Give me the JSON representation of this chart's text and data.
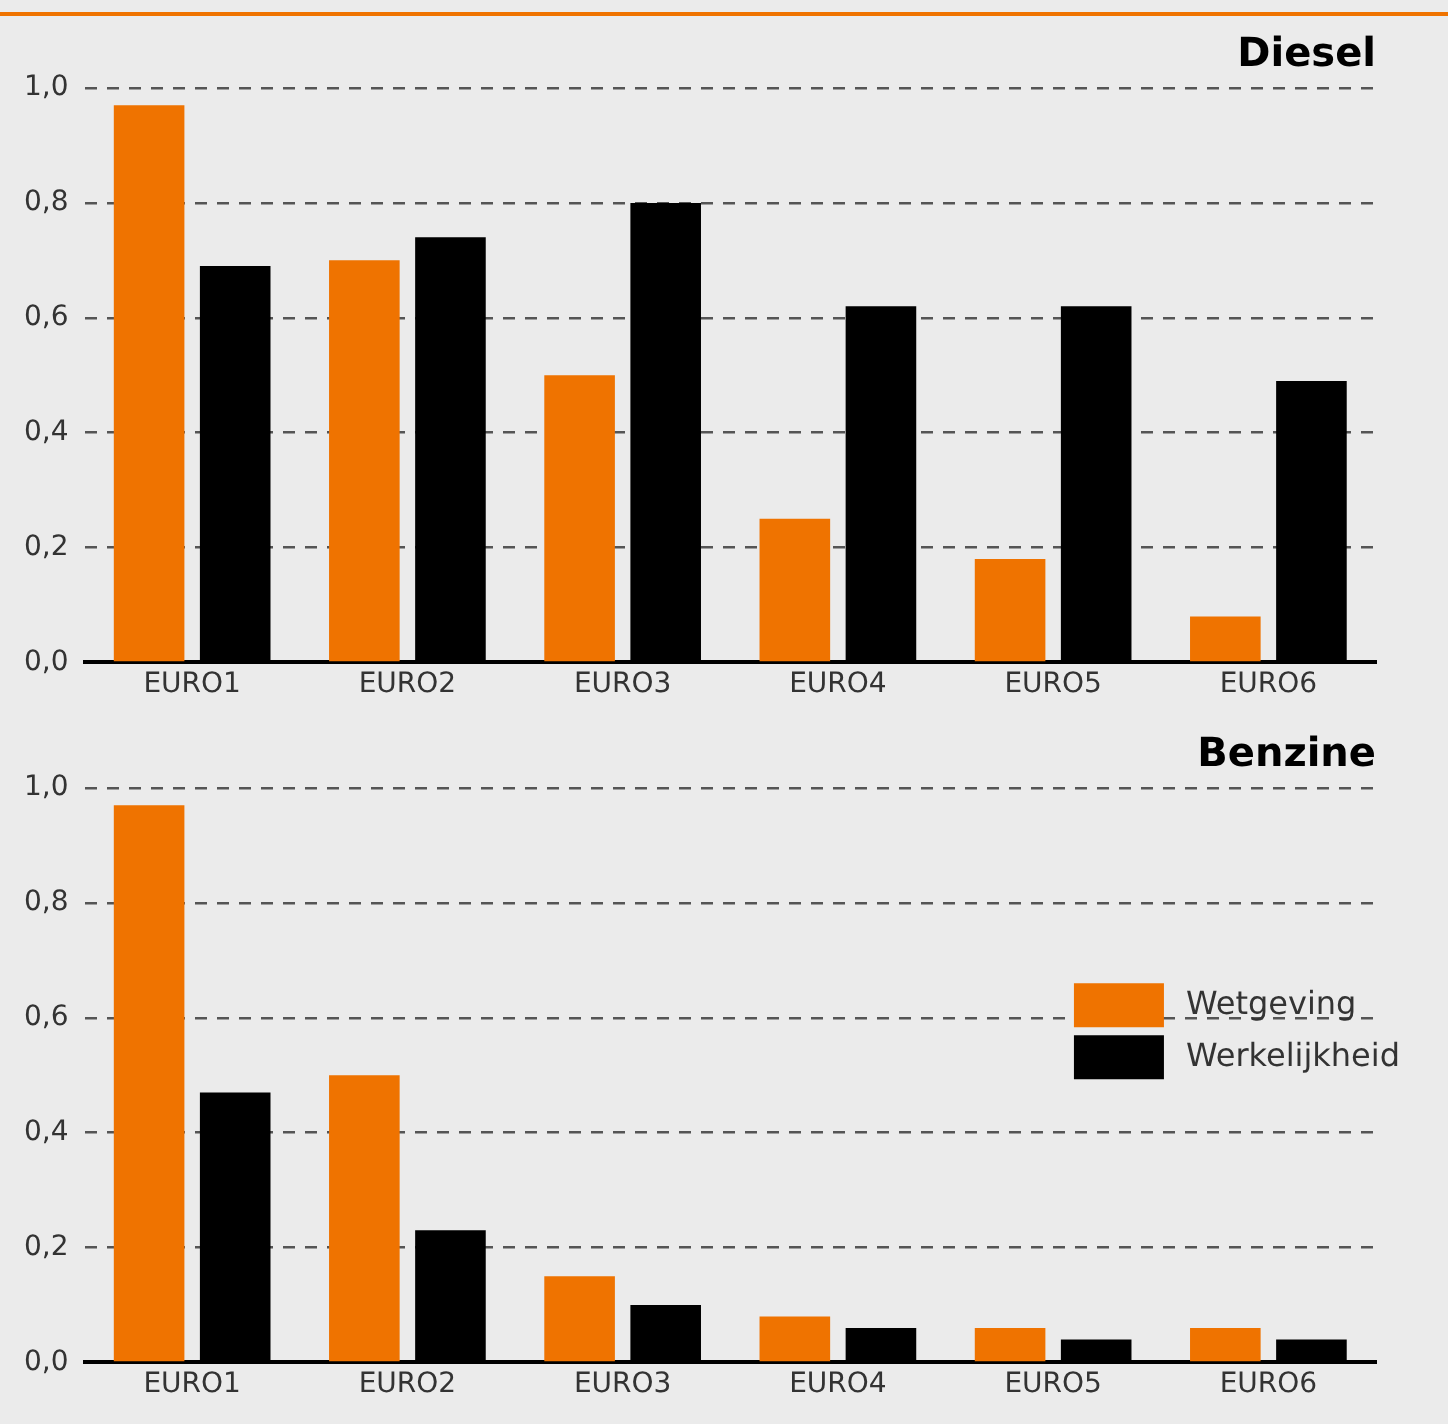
{
  "chart_data": [
    {
      "type": "bar",
      "title": "Diesel",
      "categories": [
        "EURO1",
        "EURO2",
        "EURO3",
        "EURO4",
        "EURO5",
        "EURO6"
      ],
      "series": [
        {
          "color": "#ef7300",
          "values": [
            0.97,
            0.7,
            0.5,
            0.25,
            0.18,
            0.08
          ]
        },
        {
          "color": "#000000",
          "values": [
            0.69,
            0.74,
            0.8,
            0.62,
            0.62,
            0.49
          ]
        }
      ],
      "ylim": [
        0,
        1
      ],
      "yticks": [
        {
          "value": 0,
          "label": "0,0"
        },
        {
          "value": 0.2,
          "label": "0,2"
        },
        {
          "value": 0.4,
          "label": "0,4"
        },
        {
          "value": 0.6,
          "label": "0,6"
        },
        {
          "value": 0.8,
          "label": "0,8"
        },
        {
          "value": 1,
          "label": "1,0"
        }
      ],
      "grid": "y",
      "line_style": "dashed",
      "legend": false
    },
    {
      "type": "bar",
      "title": "Benzine",
      "categories": [
        "EURO1",
        "EURO2",
        "EURO3",
        "EURO4",
        "EURO5",
        "EURO6"
      ],
      "series": [
        {
          "name": "Wetgeving",
          "color": "#ef7300",
          "values": [
            0.97,
            0.5,
            0.15,
            0.08,
            0.06,
            0.06
          ]
        },
        {
          "name": "Werkelijkheid",
          "color": "#000000",
          "values": [
            0.47,
            0.23,
            0.1,
            0.06,
            0.04,
            0.04
          ]
        }
      ],
      "ylim": [
        0,
        1
      ],
      "yticks": [
        {
          "value": 0,
          "label": "0,0"
        },
        {
          "value": 0.2,
          "label": "0,2"
        },
        {
          "value": 0.4,
          "label": "0,4"
        },
        {
          "value": 0.6,
          "label": "0,6"
        },
        {
          "value": 0.8,
          "label": "0,8"
        },
        {
          "value": 1,
          "label": "1,0"
        }
      ],
      "grid": "y",
      "line_style": "dashed",
      "legend": "right"
    }
  ]
}
